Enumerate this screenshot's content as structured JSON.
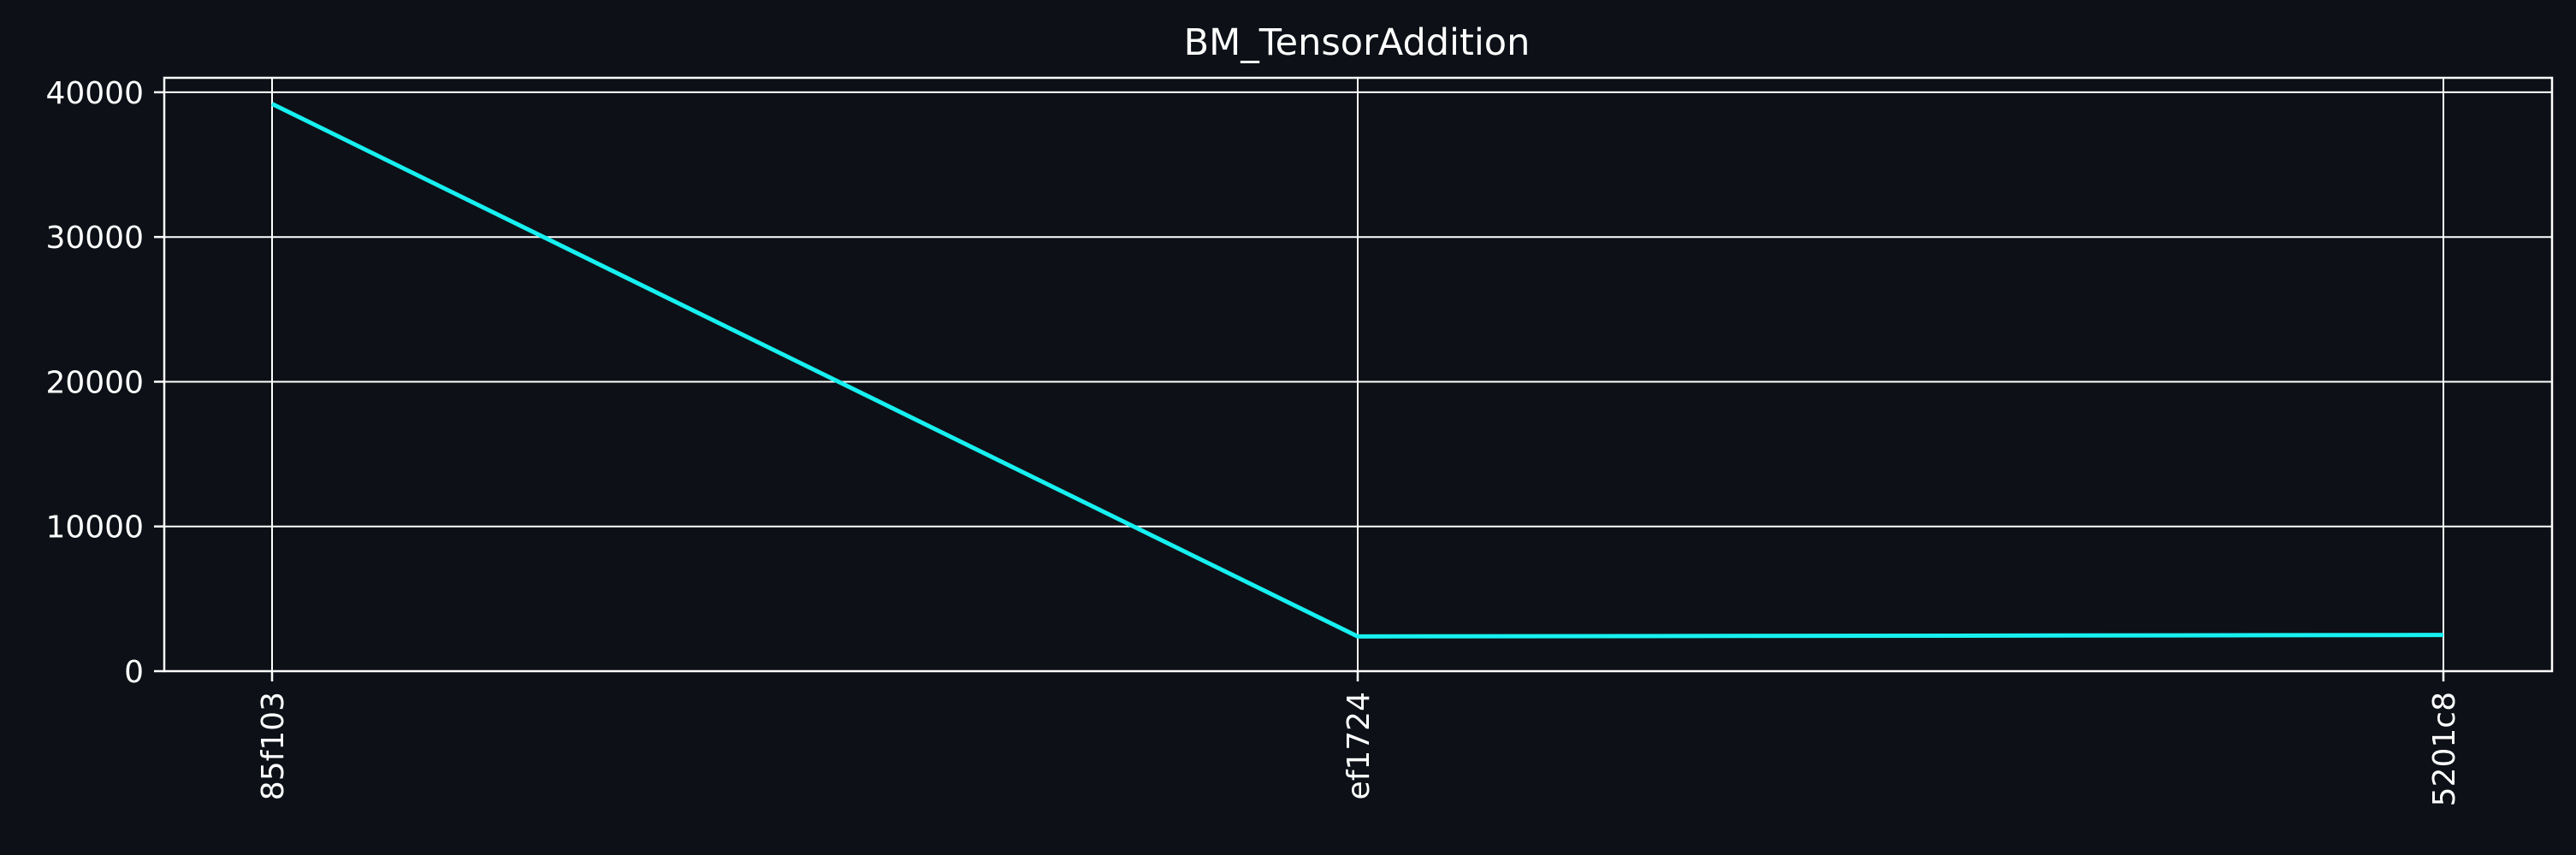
{
  "chart_data": {
    "type": "line",
    "title": "BM_TensorAddition",
    "xlabel": "",
    "ylabel": "",
    "categories": [
      "85f103",
      "ef1724",
      "5201c8"
    ],
    "series": [
      {
        "values": [
          39200,
          2400,
          2500
        ]
      }
    ],
    "ylim": [
      0,
      41000
    ],
    "yticks": [
      0,
      10000,
      20000,
      30000,
      40000
    ],
    "ytick_labels": [
      "0",
      "10000",
      "20000",
      "30000",
      "40000"
    ],
    "grid": true,
    "legend": "none",
    "colors": {
      "background": "#0d1117",
      "line": "#17f0f0",
      "axes": "#ffffff",
      "grid": "#ffffff",
      "text": "#ffffff"
    }
  }
}
